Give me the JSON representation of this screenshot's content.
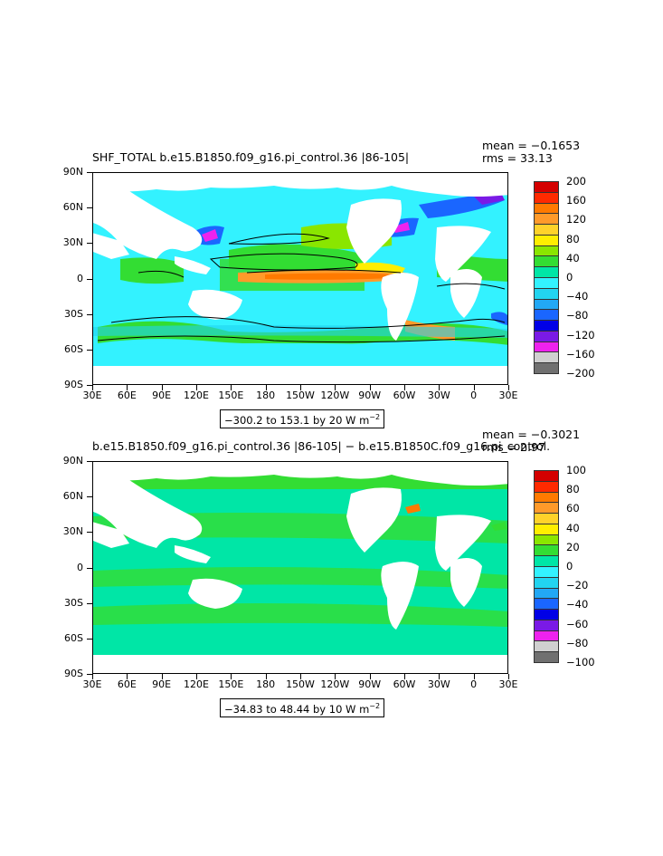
{
  "panel1": {
    "title": "SHF_TOTAL  b.e15.B1850.f09_g16.pi_control.36  |86-105|",
    "mean_label": "mean = −0.1653",
    "rms_label": "rms = 33.13",
    "range_label": "−300.2 to 153.1 by 20  W m",
    "range_sup": "−2",
    "colorbar_labels": [
      "200",
      "160",
      "120",
      "80",
      "40",
      "0",
      "−40",
      "−80",
      "−120",
      "−160",
      "−200"
    ],
    "colorbar_colors": [
      "#d40000",
      "#ff2a00",
      "#ff7a00",
      "#ff9a2a",
      "#ffd22a",
      "#ffee00",
      "#8ae600",
      "#33dd33",
      "#00e6a6",
      "#33f2ff",
      "#22d4f0",
      "#22a8f5",
      "#1a66ff",
      "#0000e6",
      "#7a1ae6",
      "#ee22ee",
      "#d0d0d0",
      "#707070"
    ]
  },
  "panel2": {
    "title": "b.e15.B1850.f09_g16.pi_control.36  |86-105|  −  b.e15.B1850C.f09_g16.pi_control.",
    "mean_label": "mean = −0.3021",
    "rms_label": "rms = 2.97",
    "range_label": "−34.83 to 48.44 by 10  W m",
    "range_sup": "−2",
    "colorbar_labels": [
      "100",
      "80",
      "60",
      "40",
      "20",
      "0",
      "−20",
      "−40",
      "−60",
      "−80",
      "−100"
    ],
    "colorbar_colors": [
      "#d40000",
      "#ff2a00",
      "#ff7a00",
      "#ff9a2a",
      "#ffd22a",
      "#ffee00",
      "#8ae600",
      "#33dd33",
      "#00e6a6",
      "#33f2ff",
      "#22d4f0",
      "#22a8f5",
      "#1a66ff",
      "#0000e6",
      "#7a1ae6",
      "#ee22ee",
      "#d0d0d0",
      "#707070"
    ]
  },
  "lat_labels": [
    "90N",
    "60N",
    "30N",
    "0",
    "30S",
    "60S",
    "90S"
  ],
  "lon_labels": [
    "30E",
    "60E",
    "90E",
    "120E",
    "150E",
    "180",
    "150W",
    "120W",
    "90W",
    "60W",
    "30W",
    "0",
    "30E"
  ]
}
